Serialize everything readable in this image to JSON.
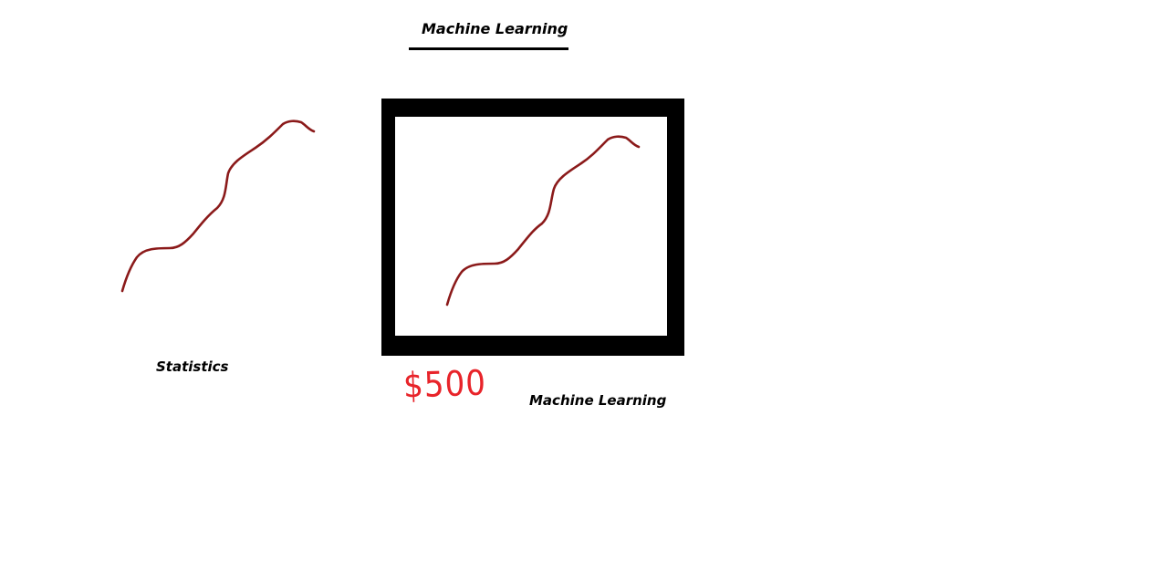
{
  "diagram": {
    "title": "Machine Learning",
    "left_label": "Statistics",
    "right_label": "Machine Learning",
    "price": "$500",
    "colors": {
      "curve": "#8b1a1a",
      "price": "#e8242a",
      "frame": "#000000",
      "text": "#000000"
    }
  }
}
